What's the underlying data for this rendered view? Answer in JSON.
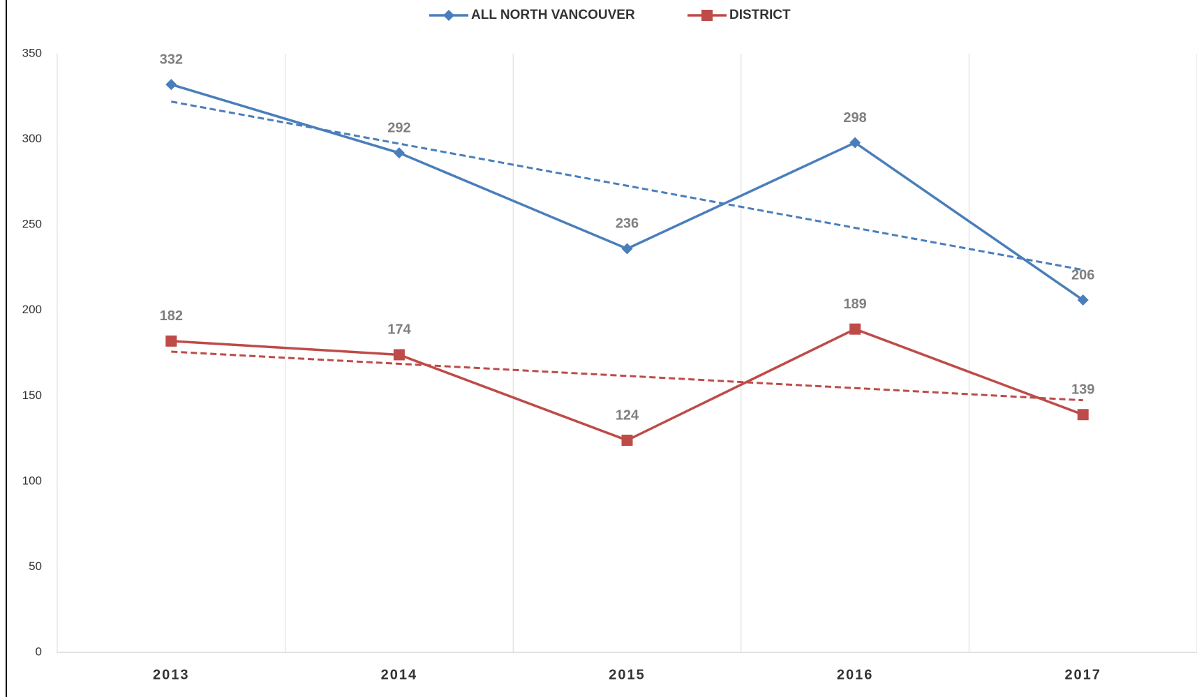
{
  "chart_data": {
    "type": "line",
    "categories": [
      "2013",
      "2014",
      "2015",
      "2016",
      "2017"
    ],
    "series": [
      {
        "name": "ALL NORTH VANCOUVER",
        "color": "#4a7ebb",
        "marker": "diamond",
        "values": [
          332,
          292,
          236,
          298,
          206
        ]
      },
      {
        "name": "DISTRICT",
        "color": "#be4b48",
        "marker": "square",
        "values": [
          182,
          174,
          124,
          189,
          139
        ]
      }
    ],
    "ylim": [
      0,
      350
    ],
    "yticks": [
      0,
      50,
      100,
      150,
      200,
      250,
      300,
      350
    ],
    "trendline": true,
    "legend": "top"
  }
}
